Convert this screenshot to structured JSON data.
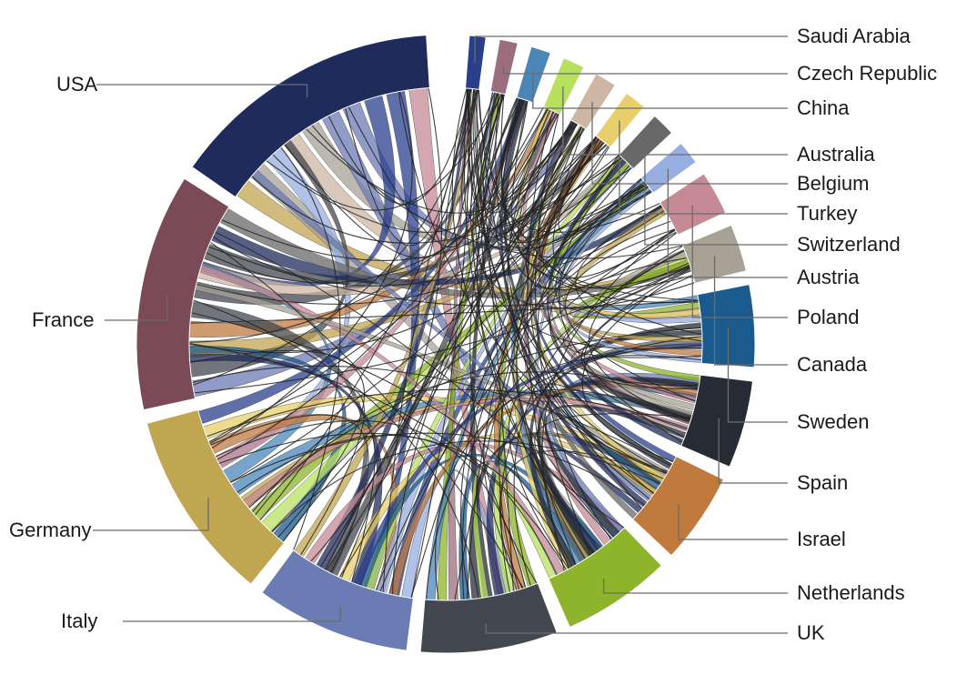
{
  "chart_data": {
    "type": "chord",
    "title": "",
    "nodes": [
      {
        "name": "USA",
        "share": 15.0,
        "color": "#1f2b5b"
      },
      {
        "name": "France",
        "share": 13.0,
        "color": "#7a4a57"
      },
      {
        "name": "Germany",
        "share": 10.5,
        "color": "#c1a651"
      },
      {
        "name": "Italy",
        "share": 8.5,
        "color": "#6b7bb4"
      },
      {
        "name": "UK",
        "share": 7.5,
        "color": "#43474f"
      },
      {
        "name": "Netherlands",
        "share": 6.0,
        "color": "#8db42a"
      },
      {
        "name": "Israel",
        "share": 5.0,
        "color": "#c07a3e"
      },
      {
        "name": "Spain",
        "share": 4.8,
        "color": "#262b35"
      },
      {
        "name": "Sweden",
        "share": 4.5,
        "color": "#1a5a8c"
      },
      {
        "name": "Canada",
        "share": 2.6,
        "color": "#a8a196"
      },
      {
        "name": "Poland",
        "share": 2.4,
        "color": "#c68a96"
      },
      {
        "name": "Austria",
        "share": 1.3,
        "color": "#97aee0"
      },
      {
        "name": "Switzerland",
        "share": 1.3,
        "color": "#686868"
      },
      {
        "name": "Turkey",
        "share": 1.2,
        "color": "#e8cf6b"
      },
      {
        "name": "Belgium",
        "share": 1.2,
        "color": "#cdb6a3"
      },
      {
        "name": "Australia",
        "share": 1.2,
        "color": "#b8e05f"
      },
      {
        "name": "China",
        "share": 1.1,
        "color": "#4a86b8"
      },
      {
        "name": "Czech Republic",
        "share": 1.0,
        "color": "#9a6e7e"
      },
      {
        "name": "Saudi Arabia",
        "share": 0.9,
        "color": "#2a3f8c"
      }
    ]
  }
}
